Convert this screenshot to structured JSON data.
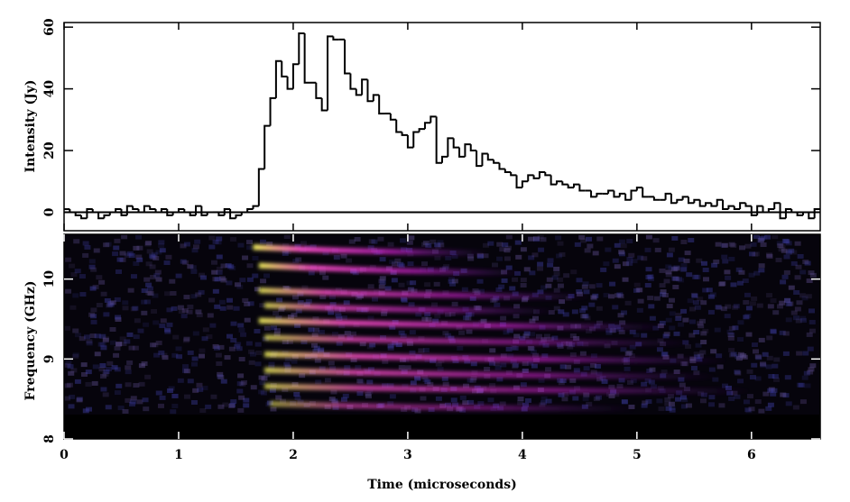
{
  "chart_data": [
    {
      "type": "step-histogram",
      "ylabel": "Intensity (Jy)",
      "xlim": [
        0,
        6.6
      ],
      "ylim": [
        -6,
        61.5
      ],
      "yticks": [
        0,
        20,
        40,
        60
      ],
      "zero_line": true,
      "bins": [
        0,
        0.05,
        0.1,
        0.15,
        0.2,
        0.25,
        0.3,
        0.35,
        0.4,
        0.45,
        0.5,
        0.55,
        0.6,
        0.65,
        0.7,
        0.75,
        0.8,
        0.85,
        0.9,
        0.95,
        1,
        1.05,
        1.1,
        1.15,
        1.2,
        1.25,
        1.3,
        1.35,
        1.4,
        1.45,
        1.5,
        1.55,
        1.6,
        1.65,
        1.7,
        1.75,
        1.8,
        1.85,
        1.9,
        1.95,
        2,
        2.05,
        2.1,
        2.15,
        2.2,
        2.25,
        2.3,
        2.35,
        2.4,
        2.45,
        2.5,
        2.55,
        2.6,
        2.65,
        2.7,
        2.75,
        2.8,
        2.85,
        2.9,
        2.95,
        3,
        3.05,
        3.1,
        3.15,
        3.2,
        3.25,
        3.3,
        3.35,
        3.4,
        3.45,
        3.5,
        3.55,
        3.6,
        3.65,
        3.7,
        3.75,
        3.8,
        3.85,
        3.9,
        3.95,
        4,
        4.05,
        4.1,
        4.15,
        4.2,
        4.25,
        4.3,
        4.35,
        4.4,
        4.45,
        4.5,
        4.55,
        4.6,
        4.65,
        4.7,
        4.75,
        4.8,
        4.85,
        4.9,
        4.95,
        5,
        5.05,
        5.1,
        5.15,
        5.2,
        5.25,
        5.3,
        5.35,
        5.4,
        5.45,
        5.5,
        5.55,
        5.6,
        5.65,
        5.7,
        5.75,
        5.8,
        5.85,
        5.9,
        5.95,
        6,
        6.05,
        6.1,
        6.15,
        6.2,
        6.25,
        6.3,
        6.35,
        6.4,
        6.45,
        6.5,
        6.55,
        6.6
      ],
      "values": [
        1,
        0,
        -1,
        -2,
        1,
        0,
        -2,
        -1,
        0,
        1,
        -1,
        2,
        1,
        0,
        2,
        1,
        0,
        1,
        -1,
        0,
        1,
        0,
        -1,
        2,
        -1,
        0,
        0,
        -1,
        1,
        -2,
        -1,
        0,
        1,
        2,
        14,
        28,
        37,
        49,
        44,
        40,
        48,
        58,
        42,
        42,
        37,
        33,
        57,
        56,
        56,
        45,
        40,
        38,
        43,
        36,
        38,
        32,
        32,
        30,
        26,
        25,
        21,
        26,
        27,
        29,
        31,
        16,
        18,
        24,
        21,
        18,
        22,
        20,
        15,
        19,
        17,
        16,
        14,
        13,
        12,
        8,
        10,
        12,
        11,
        13,
        12,
        9,
        10,
        9,
        8,
        9,
        7,
        7,
        5,
        6,
        6,
        7,
        5,
        6,
        4,
        7,
        8,
        5,
        5,
        4,
        4,
        6,
        3,
        4,
        5,
        3,
        4,
        2,
        3,
        2,
        4,
        1,
        2,
        1,
        3,
        2,
        -1,
        2,
        0,
        1,
        3,
        -2,
        1,
        0,
        -1,
        0,
        -2,
        1
      ],
      "color": "#000000"
    },
    {
      "type": "spectrogram",
      "ylabel": "Frequency (GHz)",
      "xlabel": "Time (microseconds)",
      "xlim": [
        0,
        6.6
      ],
      "xticks": [
        0,
        1,
        2,
        3,
        4,
        5,
        6
      ],
      "ylim": [
        8,
        10.56
      ],
      "yticks": [
        8,
        9,
        10
      ],
      "bands": [
        {
          "t": [
            1.65,
            3.7
          ],
          "f": [
            10.4,
            10.33
          ],
          "intensity": 1
        },
        {
          "t": [
            1.7,
            4.0
          ],
          "f": [
            10.17,
            10.08
          ],
          "intensity": 0.95
        },
        {
          "t": [
            1.7,
            4.6
          ],
          "f": [
            9.86,
            9.78
          ],
          "intensity": 0.85
        },
        {
          "t": [
            1.75,
            4.3
          ],
          "f": [
            9.67,
            9.6
          ],
          "intensity": 0.8
        },
        {
          "t": [
            1.7,
            5.3
          ],
          "f": [
            9.48,
            9.4
          ],
          "intensity": 0.9
        },
        {
          "t": [
            1.75,
            5.5
          ],
          "f": [
            9.27,
            9.2
          ],
          "intensity": 0.75
        },
        {
          "t": [
            1.75,
            5.8
          ],
          "f": [
            9.06,
            8.98
          ],
          "intensity": 0.85
        },
        {
          "t": [
            1.75,
            5.7
          ],
          "f": [
            8.86,
            8.78
          ],
          "intensity": 0.8
        },
        {
          "t": [
            1.75,
            6.0
          ],
          "f": [
            8.66,
            8.6
          ],
          "intensity": 0.75
        },
        {
          "t": [
            1.8,
            5.0
          ],
          "f": [
            8.44,
            8.38
          ],
          "intensity": 0.6
        }
      ]
    }
  ]
}
